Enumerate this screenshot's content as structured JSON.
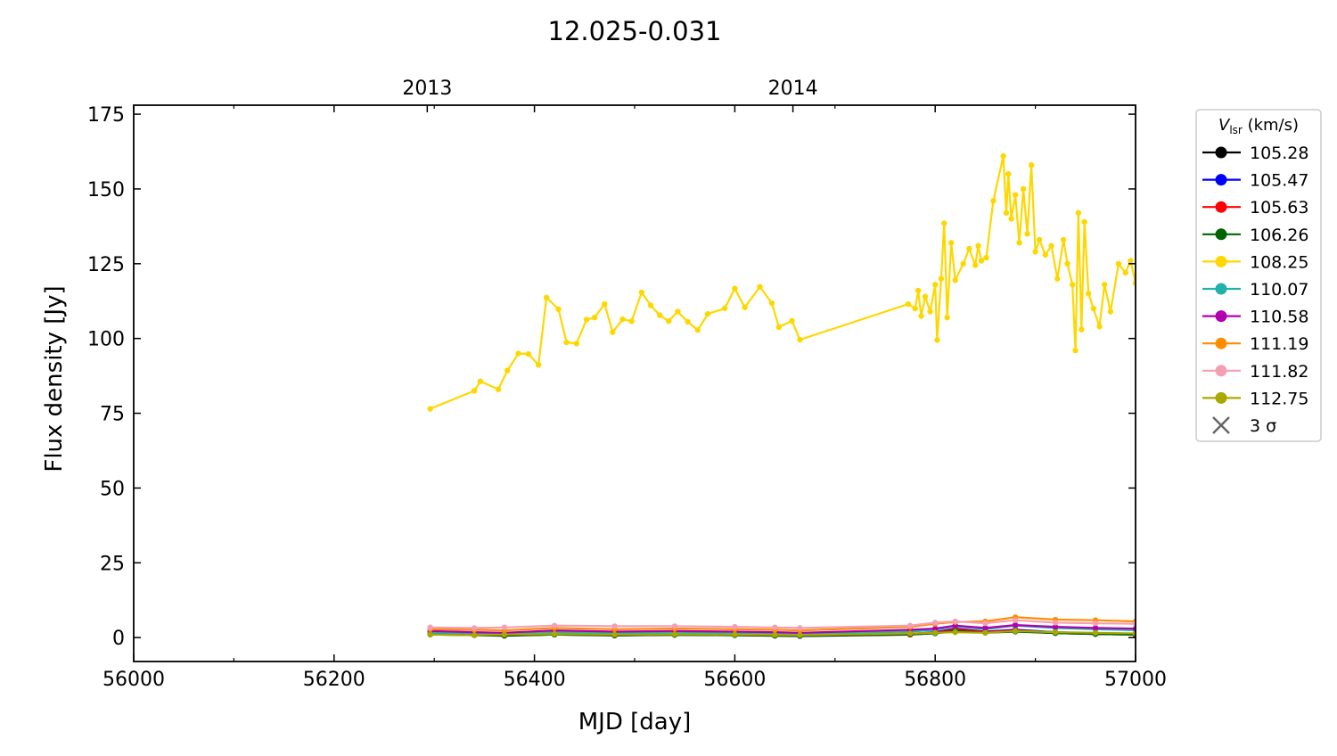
{
  "chart_data": {
    "type": "line",
    "title": "12.025-0.031",
    "xlabel": "MJD [day]",
    "ylabel": "Flux density [Jy]",
    "xlim": [
      56000,
      57000
    ],
    "ylim": [
      -8,
      178
    ],
    "x_ticks": [
      56000,
      56200,
      56400,
      56600,
      56800,
      57000
    ],
    "y_ticks": [
      0,
      25,
      50,
      75,
      100,
      125,
      150,
      175
    ],
    "top_axis": {
      "ticks": [
        {
          "x": 56293,
          "label": "2013"
        },
        {
          "x": 56658,
          "label": "2014"
        }
      ]
    },
    "grid": false,
    "legend": {
      "title_main": "V",
      "title_sub": "lsr",
      "title_units": " (km/s)",
      "placement": "outside-right",
      "sigma_label": "3 σ",
      "sigma_color": "#666666"
    },
    "series": [
      {
        "name": "105.28",
        "color": "#000000",
        "x": [
          56296,
          56340,
          56370,
          56420,
          56480,
          56540,
          56600,
          56640,
          56665,
          56775,
          56800,
          56820,
          56850,
          56880,
          56920,
          56960,
          57000
        ],
        "y": [
          1.2,
          0.8,
          0.6,
          1.0,
          0.7,
          0.9,
          0.8,
          0.6,
          0.5,
          1.0,
          1.5,
          2.5,
          1.8,
          2.2,
          1.5,
          1.2,
          1.0
        ]
      },
      {
        "name": "105.47",
        "color": "#0000ff",
        "x": [
          56296,
          56340,
          56370,
          56420,
          56480,
          56540,
          56600,
          56640,
          56665,
          56775,
          56800,
          56820,
          56850,
          56880,
          56920,
          56960,
          57000
        ],
        "y": [
          1.5,
          1.0,
          0.8,
          1.3,
          0.9,
          1.1,
          1.0,
          0.8,
          0.6,
          1.2,
          1.8,
          3.0,
          2.0,
          2.6,
          1.8,
          1.4,
          1.2
        ]
      },
      {
        "name": "105.63",
        "color": "#ff0000",
        "x": [
          56296,
          56340,
          56370,
          56420,
          56480,
          56540,
          56600,
          56640,
          56665,
          56775,
          56800,
          56820,
          56850,
          56880,
          56920,
          56960,
          57000
        ],
        "y": [
          1.8,
          1.2,
          1.0,
          1.5,
          1.1,
          1.3,
          1.2,
          1.0,
          0.8,
          1.0,
          1.6,
          2.8,
          1.9,
          2.4,
          1.7,
          1.3,
          1.1
        ]
      },
      {
        "name": "106.26",
        "color": "#006400",
        "x": [
          56296,
          56340,
          56370,
          56420,
          56480,
          56540,
          56600,
          56640,
          56665,
          56775,
          56800,
          56820,
          56850,
          56880,
          56920,
          56960,
          57000
        ],
        "y": [
          1.0,
          0.8,
          0.7,
          1.0,
          0.8,
          0.9,
          0.8,
          0.7,
          0.6,
          1.1,
          1.4,
          2.2,
          1.6,
          2.0,
          1.5,
          1.2,
          1.0
        ]
      },
      {
        "name": "108.25",
        "color": "#ffd700",
        "x": [
          56296,
          56340,
          56346,
          56364,
          56373,
          56384,
          56394,
          56404,
          56412,
          56424,
          56432,
          56442,
          56452,
          56460,
          56470,
          56478,
          56488,
          56497,
          56507,
          56516,
          56525,
          56534,
          56543,
          56553,
          56563,
          56573,
          56590,
          56600,
          56610,
          56625,
          56637,
          56644,
          56657,
          56665,
          56773,
          56780,
          56783,
          56786,
          56790,
          56795,
          56800,
          56802,
          56806,
          56809,
          56812,
          56816,
          56820,
          56828,
          56834,
          56840,
          56843,
          56846,
          56851,
          56858,
          56868,
          56871,
          56873,
          56876,
          56880,
          56884,
          56888,
          56892,
          56896,
          56900,
          56904,
          56910,
          56916,
          56922,
          56928,
          56932,
          56937,
          56940,
          56943,
          56946,
          56949,
          56953,
          56958,
          56964,
          56969,
          56975,
          56983,
          56990,
          56995,
          57000
        ],
        "y": [
          76.5,
          82.5,
          85.7,
          83.0,
          89.3,
          95.0,
          94.8,
          91.2,
          113.7,
          109.8,
          98.7,
          98.3,
          106.3,
          107.0,
          111.5,
          102.1,
          106.4,
          105.8,
          115.4,
          111.1,
          107.8,
          105.8,
          109.0,
          105.6,
          102.8,
          108.2,
          110.1,
          116.7,
          110.4,
          117.3,
          111.8,
          103.8,
          105.9,
          99.6,
          111.5,
          110.0,
          116.0,
          107.5,
          114.0,
          109.0,
          118.0,
          99.5,
          120.0,
          138.5,
          107.0,
          132.0,
          119.5,
          125.0,
          130.0,
          124.5,
          131.0,
          126.0,
          127.0,
          146.0,
          161.0,
          142.0,
          155.0,
          140.0,
          148.0,
          132.0,
          150.0,
          135.0,
          158.0,
          129.0,
          133.0,
          128.0,
          131.0,
          120.0,
          133.0,
          125.0,
          118.0,
          96.0,
          142.0,
          103.0,
          139.0,
          115.0,
          110.0,
          104.0,
          118.0,
          109.0,
          125.0,
          122.0,
          126.0,
          118.5
        ]
      },
      {
        "name": "110.07",
        "color": "#20b2aa",
        "x": [
          56296,
          56340,
          56370,
          56420,
          56480,
          56540,
          56600,
          56640,
          56665,
          56775,
          56800,
          56820,
          56850,
          56880,
          56920,
          56960,
          57000
        ],
        "y": [
          1.6,
          1.5,
          1.2,
          1.9,
          1.5,
          1.6,
          1.5,
          1.4,
          1.2,
          2.0,
          2.6,
          3.8,
          2.8,
          4.0,
          3.2,
          2.8,
          2.5
        ]
      },
      {
        "name": "110.58",
        "color": "#b000b0",
        "x": [
          56296,
          56340,
          56370,
          56420,
          56480,
          56540,
          56600,
          56640,
          56665,
          56775,
          56800,
          56820,
          56850,
          56880,
          56920,
          56960,
          57000
        ],
        "y": [
          2.2,
          1.8,
          1.6,
          2.4,
          2.0,
          2.2,
          2.0,
          1.8,
          1.6,
          2.6,
          3.0,
          4.0,
          3.2,
          4.2,
          3.6,
          3.2,
          3.0
        ]
      },
      {
        "name": "111.19",
        "color": "#ff8c00",
        "x": [
          56296,
          56340,
          56370,
          56420,
          56480,
          56540,
          56600,
          56640,
          56665,
          56775,
          56800,
          56820,
          56850,
          56880,
          56920,
          56960,
          57000
        ],
        "y": [
          2.8,
          2.6,
          2.4,
          3.2,
          2.8,
          3.0,
          2.8,
          2.6,
          2.4,
          3.6,
          4.6,
          5.2,
          5.4,
          6.8,
          6.0,
          5.8,
          5.4
        ]
      },
      {
        "name": "111.82",
        "color": "#f4a0b4",
        "x": [
          56296,
          56340,
          56370,
          56420,
          56480,
          56540,
          56600,
          56640,
          56665,
          56775,
          56800,
          56820,
          56850,
          56880,
          56920,
          56960,
          57000
        ],
        "y": [
          3.4,
          3.2,
          3.4,
          4.0,
          3.8,
          3.8,
          3.6,
          3.4,
          3.2,
          4.0,
          5.0,
          5.4,
          4.8,
          5.8,
          5.0,
          4.8,
          4.6
        ]
      },
      {
        "name": "112.75",
        "color": "#a8a800",
        "x": [
          56296,
          56340,
          56370,
          56420,
          56480,
          56540,
          56600,
          56640,
          56665,
          56775,
          56800,
          56820,
          56850,
          56880,
          56920,
          56960,
          57000
        ],
        "y": [
          1.0,
          0.8,
          1.0,
          1.2,
          1.0,
          1.1,
          1.0,
          0.9,
          0.8,
          1.4,
          1.6,
          1.8,
          1.6,
          2.2,
          1.8,
          1.6,
          1.4
        ]
      }
    ]
  }
}
